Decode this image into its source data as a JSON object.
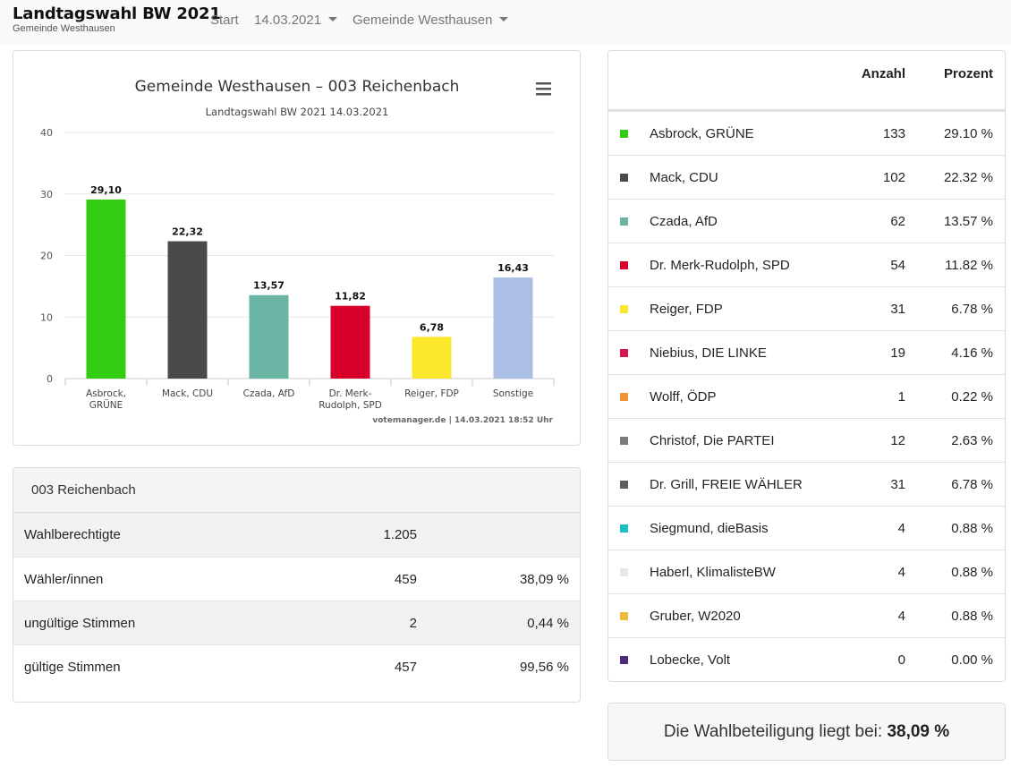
{
  "navbar": {
    "title": "Landtagswahl BW 2021",
    "subtitle": "Gemeinde Westhausen",
    "start_label": "Start",
    "date_label": "14.03.2021",
    "municipality_label": "Gemeinde Westhausen"
  },
  "chart": {
    "menu_icon": "hamburger-menu-icon",
    "credit": "votemanager.de | 14.03.2021 18:52 Uhr"
  },
  "chart_data": {
    "type": "bar",
    "title": "Gemeinde Westhausen – 003 Reichenbach",
    "subtitle": "Landtagswahl BW 2021 14.03.2021",
    "categories": [
      [
        "Asbrock,",
        "GRÜNE"
      ],
      [
        "Mack, CDU"
      ],
      [
        "Czada, AfD"
      ],
      [
        "Dr. Merk-",
        "Rudolph, SPD"
      ],
      [
        "Reiger, FDP"
      ],
      [
        "Sonstige"
      ]
    ],
    "values": [
      29.1,
      22.32,
      13.57,
      11.82,
      6.78,
      16.43
    ],
    "data_labels": [
      "29,10",
      "22,32",
      "13,57",
      "11,82",
      "6,78",
      "16,43"
    ],
    "colors": [
      "#32cd10",
      "#4a4a4a",
      "#6bb5a5",
      "#d8002b",
      "#fbe82c",
      "#abbfe5"
    ],
    "yticks": [
      0,
      10,
      20,
      30,
      40
    ],
    "ylim": [
      0,
      40
    ],
    "xlabel": "",
    "ylabel": "",
    "grid": true,
    "legend": "none"
  },
  "stats": {
    "header": "003 Reichenbach",
    "rows": [
      {
        "label": "Wahlberechtigte",
        "count": "1.205",
        "percent": ""
      },
      {
        "label": "Wähler/innen",
        "count": "459",
        "percent": "38,09 %"
      },
      {
        "label": "ungültige Stimmen",
        "count": "2",
        "percent": "0,44 %"
      },
      {
        "label": "gültige Stimmen",
        "count": "457",
        "percent": "99,56 %"
      }
    ]
  },
  "results": {
    "col_count": "Anzahl",
    "col_percent": "Prozent",
    "rows": [
      {
        "name": "Asbrock, GRÜNE",
        "votes": "133",
        "percent": "29.10 %",
        "color": "#32cd10"
      },
      {
        "name": "Mack, CDU",
        "votes": "102",
        "percent": "22.32 %",
        "color": "#4a4a4a"
      },
      {
        "name": "Czada, AfD",
        "votes": "62",
        "percent": "13.57 %",
        "color": "#6bb5a5"
      },
      {
        "name": "Dr. Merk-Rudolph, SPD",
        "votes": "54",
        "percent": "11.82 %",
        "color": "#d8002b"
      },
      {
        "name": "Reiger, FDP",
        "votes": "31",
        "percent": "6.78 %",
        "color": "#fbe82c"
      },
      {
        "name": "Niebius, DIE LINKE",
        "votes": "19",
        "percent": "4.16 %",
        "color": "#d4164f"
      },
      {
        "name": "Wolff, ÖDP",
        "votes": "1",
        "percent": "0.22 %",
        "color": "#f29535"
      },
      {
        "name": "Christof, Die PARTEI",
        "votes": "12",
        "percent": "2.63 %",
        "color": "#7c7c7c"
      },
      {
        "name": "Dr. Grill, FREIE WÄHLER",
        "votes": "31",
        "percent": "6.78 %",
        "color": "#5e5e5e"
      },
      {
        "name": "Siegmund, dieBasis",
        "votes": "4",
        "percent": "0.88 %",
        "color": "#19c0c4"
      },
      {
        "name": "Haberl, KlimalisteBW",
        "votes": "4",
        "percent": "0.88 %",
        "color": "#e3e9e1"
      },
      {
        "name": "Gruber, W2020",
        "votes": "4",
        "percent": "0.88 %",
        "color": "#f0ba38"
      },
      {
        "name": "Lobecke, Volt",
        "votes": "0",
        "percent": "0.00 %",
        "color": "#4f2a7a"
      }
    ]
  },
  "turnout": {
    "label": "Die Wahlbeteiligung liegt bei:",
    "value": "38,09 %"
  }
}
